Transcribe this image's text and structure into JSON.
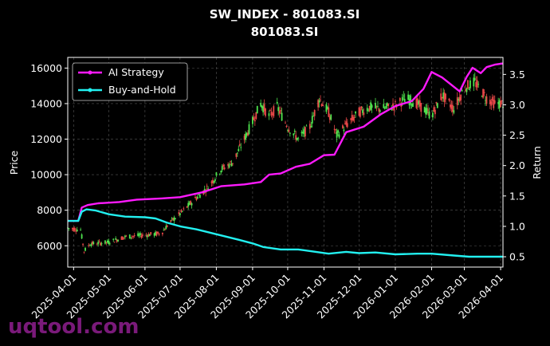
{
  "chart_data": {
    "type": "line",
    "title": "SW_INDEX - 801083.SI",
    "subtitle": "801083.SI",
    "ylabel": "Price",
    "y2label": "Return",
    "xlabel": "",
    "x_ticks": [
      "2025-04-01",
      "2025-05-01",
      "2025-06-01",
      "2025-07-01",
      "2025-08-01",
      "2025-09-01",
      "2025-10-01",
      "2025-11-01",
      "2025-12-01",
      "2026-01-01",
      "2026-02-01",
      "2026-03-01",
      "2026-04-01"
    ],
    "xlim": [
      "2025-03-27",
      "2026-04-03"
    ],
    "ylim": [
      4800,
      16600
    ],
    "y_ticks": [
      6000,
      8000,
      10000,
      12000,
      14000,
      16000
    ],
    "y2lim": [
      0.33,
      3.78
    ],
    "y2_ticks": [
      0.5,
      1.0,
      1.5,
      2.0,
      2.5,
      3.0,
      3.5
    ],
    "y2_tick_labels": [
      "0.5",
      "1.0",
      "1.5",
      "2.0",
      "2.5",
      "3.0",
      "3.5"
    ],
    "grid": true,
    "legend_position": "top-left",
    "candle_colors": {
      "up": "#4ee44e",
      "down": "#e84848"
    },
    "price_path": [
      [
        "2025-03-27",
        7000
      ],
      [
        "2025-04-07",
        6900
      ],
      [
        "2025-04-10",
        5700
      ],
      [
        "2025-04-15",
        6100
      ],
      [
        "2025-05-01",
        6200
      ],
      [
        "2025-05-15",
        6500
      ],
      [
        "2025-06-01",
        6600
      ],
      [
        "2025-06-15",
        6700
      ],
      [
        "2025-06-22",
        7300
      ],
      [
        "2025-07-01",
        7800
      ],
      [
        "2025-07-15",
        8700
      ],
      [
        "2025-07-25",
        9300
      ],
      [
        "2025-08-05",
        10300
      ],
      [
        "2025-08-15",
        10700
      ],
      [
        "2025-08-25",
        12000
      ],
      [
        "2025-09-01",
        13000
      ],
      [
        "2025-09-08",
        14000
      ],
      [
        "2025-09-15",
        13300
      ],
      [
        "2025-09-22",
        13800
      ],
      [
        "2025-10-01",
        12700
      ],
      [
        "2025-10-10",
        12000
      ],
      [
        "2025-10-20",
        12700
      ],
      [
        "2025-10-28",
        14300
      ],
      [
        "2025-11-05",
        13500
      ],
      [
        "2025-11-12",
        12200
      ],
      [
        "2025-11-20",
        12800
      ],
      [
        "2025-12-01",
        13500
      ],
      [
        "2025-12-10",
        13800
      ],
      [
        "2025-12-20",
        13700
      ],
      [
        "2026-01-01",
        13900
      ],
      [
        "2026-01-10",
        14300
      ],
      [
        "2026-01-20",
        14000
      ],
      [
        "2026-02-01",
        13300
      ],
      [
        "2026-02-10",
        14500
      ],
      [
        "2026-02-20",
        13700
      ],
      [
        "2026-03-01",
        14900
      ],
      [
        "2026-03-10",
        15200
      ],
      [
        "2026-03-20",
        14300
      ],
      [
        "2026-03-27",
        14000
      ],
      [
        "2026-04-03",
        14000
      ]
    ],
    "series": [
      {
        "name": "AI Strategy",
        "color": "#ff1aff",
        "axis": "right",
        "points": [
          [
            "2025-03-27",
            1.09
          ],
          [
            "2025-04-05",
            1.09
          ],
          [
            "2025-04-08",
            1.31
          ],
          [
            "2025-04-13",
            1.35
          ],
          [
            "2025-04-22",
            1.38
          ],
          [
            "2025-05-10",
            1.4
          ],
          [
            "2025-05-25",
            1.44
          ],
          [
            "2025-06-15",
            1.46
          ],
          [
            "2025-07-01",
            1.48
          ],
          [
            "2025-07-20",
            1.56
          ],
          [
            "2025-08-05",
            1.66
          ],
          [
            "2025-08-25",
            1.69
          ],
          [
            "2025-09-08",
            1.73
          ],
          [
            "2025-09-15",
            1.85
          ],
          [
            "2025-09-25",
            1.87
          ],
          [
            "2025-10-08",
            1.98
          ],
          [
            "2025-10-20",
            2.03
          ],
          [
            "2025-11-01",
            2.17
          ],
          [
            "2025-11-10",
            2.18
          ],
          [
            "2025-11-20",
            2.55
          ],
          [
            "2025-12-05",
            2.64
          ],
          [
            "2025-12-20",
            2.85
          ],
          [
            "2026-01-01",
            2.98
          ],
          [
            "2026-01-15",
            3.06
          ],
          [
            "2026-01-25",
            3.26
          ],
          [
            "2026-02-01",
            3.54
          ],
          [
            "2026-02-10",
            3.45
          ],
          [
            "2026-02-25",
            3.22
          ],
          [
            "2026-03-03",
            3.46
          ],
          [
            "2026-03-08",
            3.61
          ],
          [
            "2026-03-15",
            3.52
          ],
          [
            "2026-03-20",
            3.62
          ],
          [
            "2026-03-27",
            3.66
          ],
          [
            "2026-04-03",
            3.68
          ]
        ]
      },
      {
        "name": "Buy-and-Hold",
        "color": "#22f0f0",
        "axis": "right",
        "points": [
          [
            "2025-03-27",
            1.09
          ],
          [
            "2025-04-05",
            1.09
          ],
          [
            "2025-04-08",
            1.24
          ],
          [
            "2025-04-12",
            1.28
          ],
          [
            "2025-04-20",
            1.26
          ],
          [
            "2025-05-01",
            1.2
          ],
          [
            "2025-05-15",
            1.16
          ],
          [
            "2025-06-01",
            1.15
          ],
          [
            "2025-06-10",
            1.13
          ],
          [
            "2025-06-20",
            1.06
          ],
          [
            "2025-07-01",
            1.0
          ],
          [
            "2025-07-15",
            0.95
          ],
          [
            "2025-08-01",
            0.87
          ],
          [
            "2025-08-20",
            0.78
          ],
          [
            "2025-09-01",
            0.72
          ],
          [
            "2025-09-10",
            0.66
          ],
          [
            "2025-09-25",
            0.62
          ],
          [
            "2025-10-10",
            0.62
          ],
          [
            "2025-10-25",
            0.58
          ],
          [
            "2025-11-05",
            0.55
          ],
          [
            "2025-11-20",
            0.58
          ],
          [
            "2025-12-01",
            0.56
          ],
          [
            "2025-12-15",
            0.57
          ],
          [
            "2026-01-01",
            0.54
          ],
          [
            "2026-01-20",
            0.55
          ],
          [
            "2026-02-01",
            0.55
          ],
          [
            "2026-02-20",
            0.52
          ],
          [
            "2026-03-05",
            0.5
          ],
          [
            "2026-03-20",
            0.5
          ],
          [
            "2026-04-03",
            0.5
          ]
        ]
      }
    ]
  },
  "watermark": "uqtool.com"
}
